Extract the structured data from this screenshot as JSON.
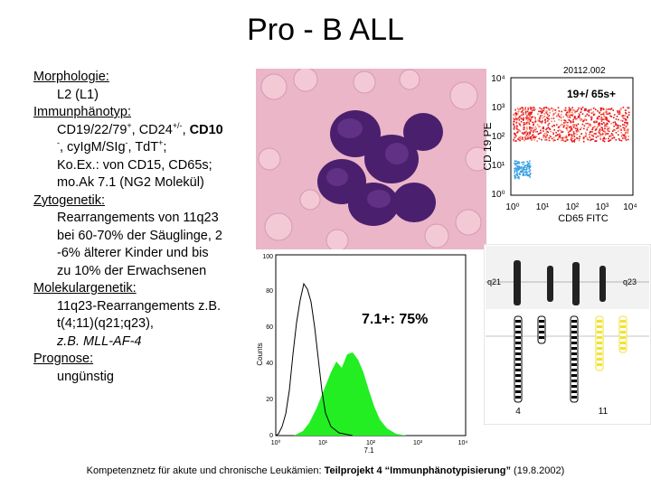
{
  "title": "Pro - B ALL",
  "sections": {
    "morph_h": "Morphologie:",
    "morph_1": "L2 (L1)",
    "immun_h": "Immunphänotyp:",
    "immun_1a": "CD19/22/79",
    "immun_1b": "+",
    "immun_1c": ", CD24",
    "immun_1d": "+/-",
    "immun_1e": ", ",
    "immun_1f": "CD10",
    "immun_2a": "-",
    "immun_2b": ", cyIgM/SIg",
    "immun_2c": "-",
    "immun_2d": ", TdT",
    "immun_2e": "+",
    "immun_2f": ";",
    "immun_3": "Ko.Ex.: von CD15, CD65s;",
    "immun_4": "mo.Ak 7.1 (NG2 Molekül)",
    "zyto_h": "Zytogenetik:",
    "zyto_1": "Rearrangements von 11q23",
    "zyto_2": "bei 60-70% der Säuglinge, 2",
    "zyto_3": "-6% älterer Kinder und bis",
    "zyto_4": "zu 10% der Erwachsenen",
    "molek_h": "Molekulargenetik:",
    "molek_1": "11q23-Rearrangements z.B.",
    "molek_2": "t(4;11)(q21;q23),",
    "molek_3": "z.B. MLL-AF-4",
    "prog_h": "Prognose:",
    "prog_1": "ungünstig"
  },
  "flow": {
    "id": "20112.002",
    "label": "19+/ 65s+",
    "ylabel": "CD 19 PE",
    "xlabel": "CD65 FITC",
    "yticks": [
      "10⁰",
      "10¹",
      "10²",
      "10³",
      "10⁴"
    ],
    "xticks": [
      "10⁰",
      "10¹",
      "10²",
      "10³",
      "10⁴"
    ]
  },
  "hist": {
    "label": "7.1+: 75%",
    "ylabel": "Counts",
    "xlabel": "7.1",
    "yticks": [
      "0",
      "20",
      "40",
      "60",
      "80",
      "100"
    ],
    "xticks": [
      "10⁰",
      "10¹",
      "10²",
      "10³",
      "10⁴"
    ]
  },
  "karyo": {
    "q21": "q21",
    "q23": "q23",
    "c4": "4",
    "c11": "11"
  },
  "footer": {
    "a": "Kompetenznetz für akute und chronische Leukämien: ",
    "b": "Teilprojekt 4 “Immunphänotypisierung”",
    "c": " (19.8.2002)"
  },
  "colors": {
    "red_population": "#e0141a",
    "blue_population": "#3aa0e0",
    "green_histogram": "#22ee22",
    "cell_purple": "#4a1f6e",
    "background_pink": "#e9b9c9",
    "yellow_chromosome": "#f2e230"
  }
}
